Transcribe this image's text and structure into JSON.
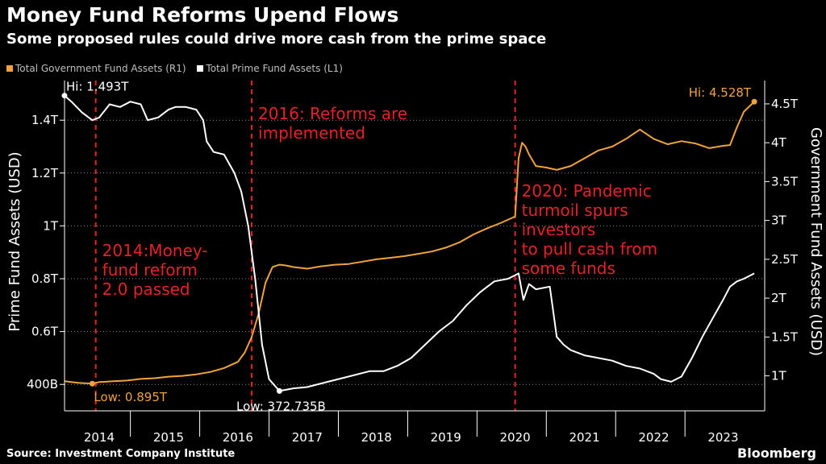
{
  "title": "Money Fund Reforms Upend Flows",
  "subtitle": "Some proposed rules could drive more cash from the prime space",
  "source": "Source: Investment Company Institute",
  "brand": "Bloomberg",
  "colors": {
    "background": "#000000",
    "government": "#f0a33c",
    "prime": "#ffffff",
    "annotation": "#e8202a",
    "grid": "#8a8a8a"
  },
  "chart_data": {
    "type": "line",
    "title": "Money Fund Reforms Upend Flows",
    "ylabel_left": "Prime Fund Assets (USD)",
    "ylabel_right": "Government Fund Assets (USD)",
    "x_range": [
      2013.5,
      2023.6
    ],
    "ylim_left": [
      0.3,
      1.55
    ],
    "ylim_right": [
      0.55,
      4.8
    ],
    "left_ticks": [
      {
        "value": 0.4,
        "label": "400B"
      },
      {
        "value": 0.6,
        "label": "0.6T"
      },
      {
        "value": 0.8,
        "label": "0.8T"
      },
      {
        "value": 1.0,
        "label": "1T"
      },
      {
        "value": 1.2,
        "label": "1.2T"
      },
      {
        "value": 1.4,
        "label": "1.4T"
      }
    ],
    "right_ticks": [
      {
        "value": 1.0,
        "label": "1T"
      },
      {
        "value": 1.5,
        "label": "1.5T"
      },
      {
        "value": 2.0,
        "label": "2T"
      },
      {
        "value": 2.5,
        "label": "2.5T"
      },
      {
        "value": 3.0,
        "label": "3T"
      },
      {
        "value": 3.5,
        "label": "3.5T"
      },
      {
        "value": 4.0,
        "label": "4T"
      },
      {
        "value": 4.5,
        "label": "4.5T"
      }
    ],
    "x_ticks": [
      {
        "value": 2014.0,
        "label": "2014"
      },
      {
        "value": 2015.0,
        "label": "2015"
      },
      {
        "value": 2016.0,
        "label": "2016"
      },
      {
        "value": 2017.0,
        "label": "2017"
      },
      {
        "value": 2018.0,
        "label": "2018"
      },
      {
        "value": 2019.0,
        "label": "2019"
      },
      {
        "value": 2020.0,
        "label": "2020"
      },
      {
        "value": 2021.0,
        "label": "2021"
      },
      {
        "value": 2022.0,
        "label": "2022"
      },
      {
        "value": 2023.0,
        "label": "2023"
      }
    ],
    "series": [
      {
        "name": "Total Government Fund Assets (R1)",
        "axis": "right",
        "color": "#f0a33c",
        "x": [
          2013.5,
          2013.7,
          2013.9,
          2014.0,
          2014.2,
          2014.4,
          2014.6,
          2014.8,
          2015.0,
          2015.2,
          2015.4,
          2015.6,
          2015.8,
          2016.0,
          2016.1,
          2016.2,
          2016.3,
          2016.4,
          2016.5,
          2016.6,
          2016.7,
          2016.8,
          2017.0,
          2017.2,
          2017.4,
          2017.6,
          2017.8,
          2018.0,
          2018.2,
          2018.4,
          2018.6,
          2018.8,
          2019.0,
          2019.2,
          2019.4,
          2019.6,
          2019.8,
          2020.0,
          2020.05,
          2020.1,
          2020.15,
          2020.2,
          2020.3,
          2020.45,
          2020.6,
          2020.8,
          2021.0,
          2021.2,
          2021.4,
          2021.6,
          2021.8,
          2022.0,
          2022.2,
          2022.4,
          2022.6,
          2022.8,
          2023.0,
          2023.1,
          2023.2,
          2023.3,
          2023.45
        ],
        "values": [
          0.93,
          0.91,
          0.9,
          0.92,
          0.93,
          0.94,
          0.96,
          0.97,
          0.99,
          1.0,
          1.02,
          1.05,
          1.1,
          1.18,
          1.3,
          1.5,
          1.8,
          2.2,
          2.4,
          2.43,
          2.42,
          2.4,
          2.38,
          2.41,
          2.43,
          2.44,
          2.47,
          2.5,
          2.52,
          2.54,
          2.57,
          2.6,
          2.65,
          2.72,
          2.82,
          2.9,
          2.97,
          3.05,
          3.8,
          4.0,
          3.95,
          3.85,
          3.7,
          3.68,
          3.65,
          3.7,
          3.8,
          3.9,
          3.95,
          4.05,
          4.17,
          4.05,
          3.98,
          4.02,
          3.99,
          3.93,
          3.96,
          3.97,
          4.2,
          4.4,
          4.528
        ]
      },
      {
        "name": "Total Prime Fund Assets (L1)",
        "axis": "left",
        "color": "#ffffff",
        "x": [
          2013.5,
          2013.6,
          2013.75,
          2013.9,
          2014.0,
          2014.15,
          2014.3,
          2014.45,
          2014.6,
          2014.7,
          2014.85,
          2015.0,
          2015.1,
          2015.25,
          2015.4,
          2015.5,
          2015.55,
          2015.65,
          2015.8,
          2015.95,
          2016.05,
          2016.15,
          2016.25,
          2016.35,
          2016.45,
          2016.6,
          2016.8,
          2017.0,
          2017.3,
          2017.6,
          2017.9,
          2018.1,
          2018.3,
          2018.5,
          2018.7,
          2018.9,
          2019.1,
          2019.3,
          2019.5,
          2019.7,
          2019.9,
          2020.05,
          2020.12,
          2020.2,
          2020.3,
          2020.5,
          2020.6,
          2020.7,
          2020.8,
          2021.0,
          2021.2,
          2021.4,
          2021.6,
          2021.8,
          2022.0,
          2022.1,
          2022.25,
          2022.4,
          2022.55,
          2022.7,
          2022.85,
          2023.0,
          2023.1,
          2023.2,
          2023.3,
          2023.45
        ],
        "values": [
          1.493,
          1.47,
          1.43,
          1.4,
          1.41,
          1.46,
          1.45,
          1.47,
          1.46,
          1.4,
          1.41,
          1.44,
          1.45,
          1.45,
          1.44,
          1.4,
          1.32,
          1.28,
          1.27,
          1.2,
          1.13,
          1.0,
          0.8,
          0.55,
          0.42,
          0.375,
          0.385,
          0.39,
          0.41,
          0.43,
          0.45,
          0.45,
          0.47,
          0.5,
          0.55,
          0.6,
          0.64,
          0.7,
          0.75,
          0.79,
          0.8,
          0.82,
          0.72,
          0.78,
          0.76,
          0.77,
          0.58,
          0.55,
          0.53,
          0.51,
          0.5,
          0.49,
          0.47,
          0.46,
          0.44,
          0.42,
          0.41,
          0.43,
          0.5,
          0.58,
          0.65,
          0.72,
          0.77,
          0.79,
          0.8,
          0.82
        ]
      }
    ],
    "events": [
      {
        "x": 2013.95,
        "lines": [
          "2014:Money-",
          "fund reform",
          "2.0 passed"
        ]
      },
      {
        "x": 2016.2,
        "lines": [
          "2016: Reforms are",
          "implemented"
        ]
      },
      {
        "x": 2020.0,
        "lines": [
          "2020: Pandemic",
          "turmoil spurs",
          "investors",
          "to pull cash from",
          "some funds"
        ]
      }
    ],
    "annotations": [
      {
        "series": "prime",
        "label": "Hi: 1.493T",
        "x": 2013.5,
        "value": 1.493
      },
      {
        "series": "prime",
        "label": "Low: 372.735B",
        "x": 2016.6,
        "value": 0.375
      },
      {
        "series": "government",
        "label": "Low: 0.895T",
        "x": 2013.9,
        "value": 0.9
      },
      {
        "series": "government",
        "label": "Hi: 4.528T",
        "x": 2023.45,
        "value": 4.528
      }
    ]
  }
}
